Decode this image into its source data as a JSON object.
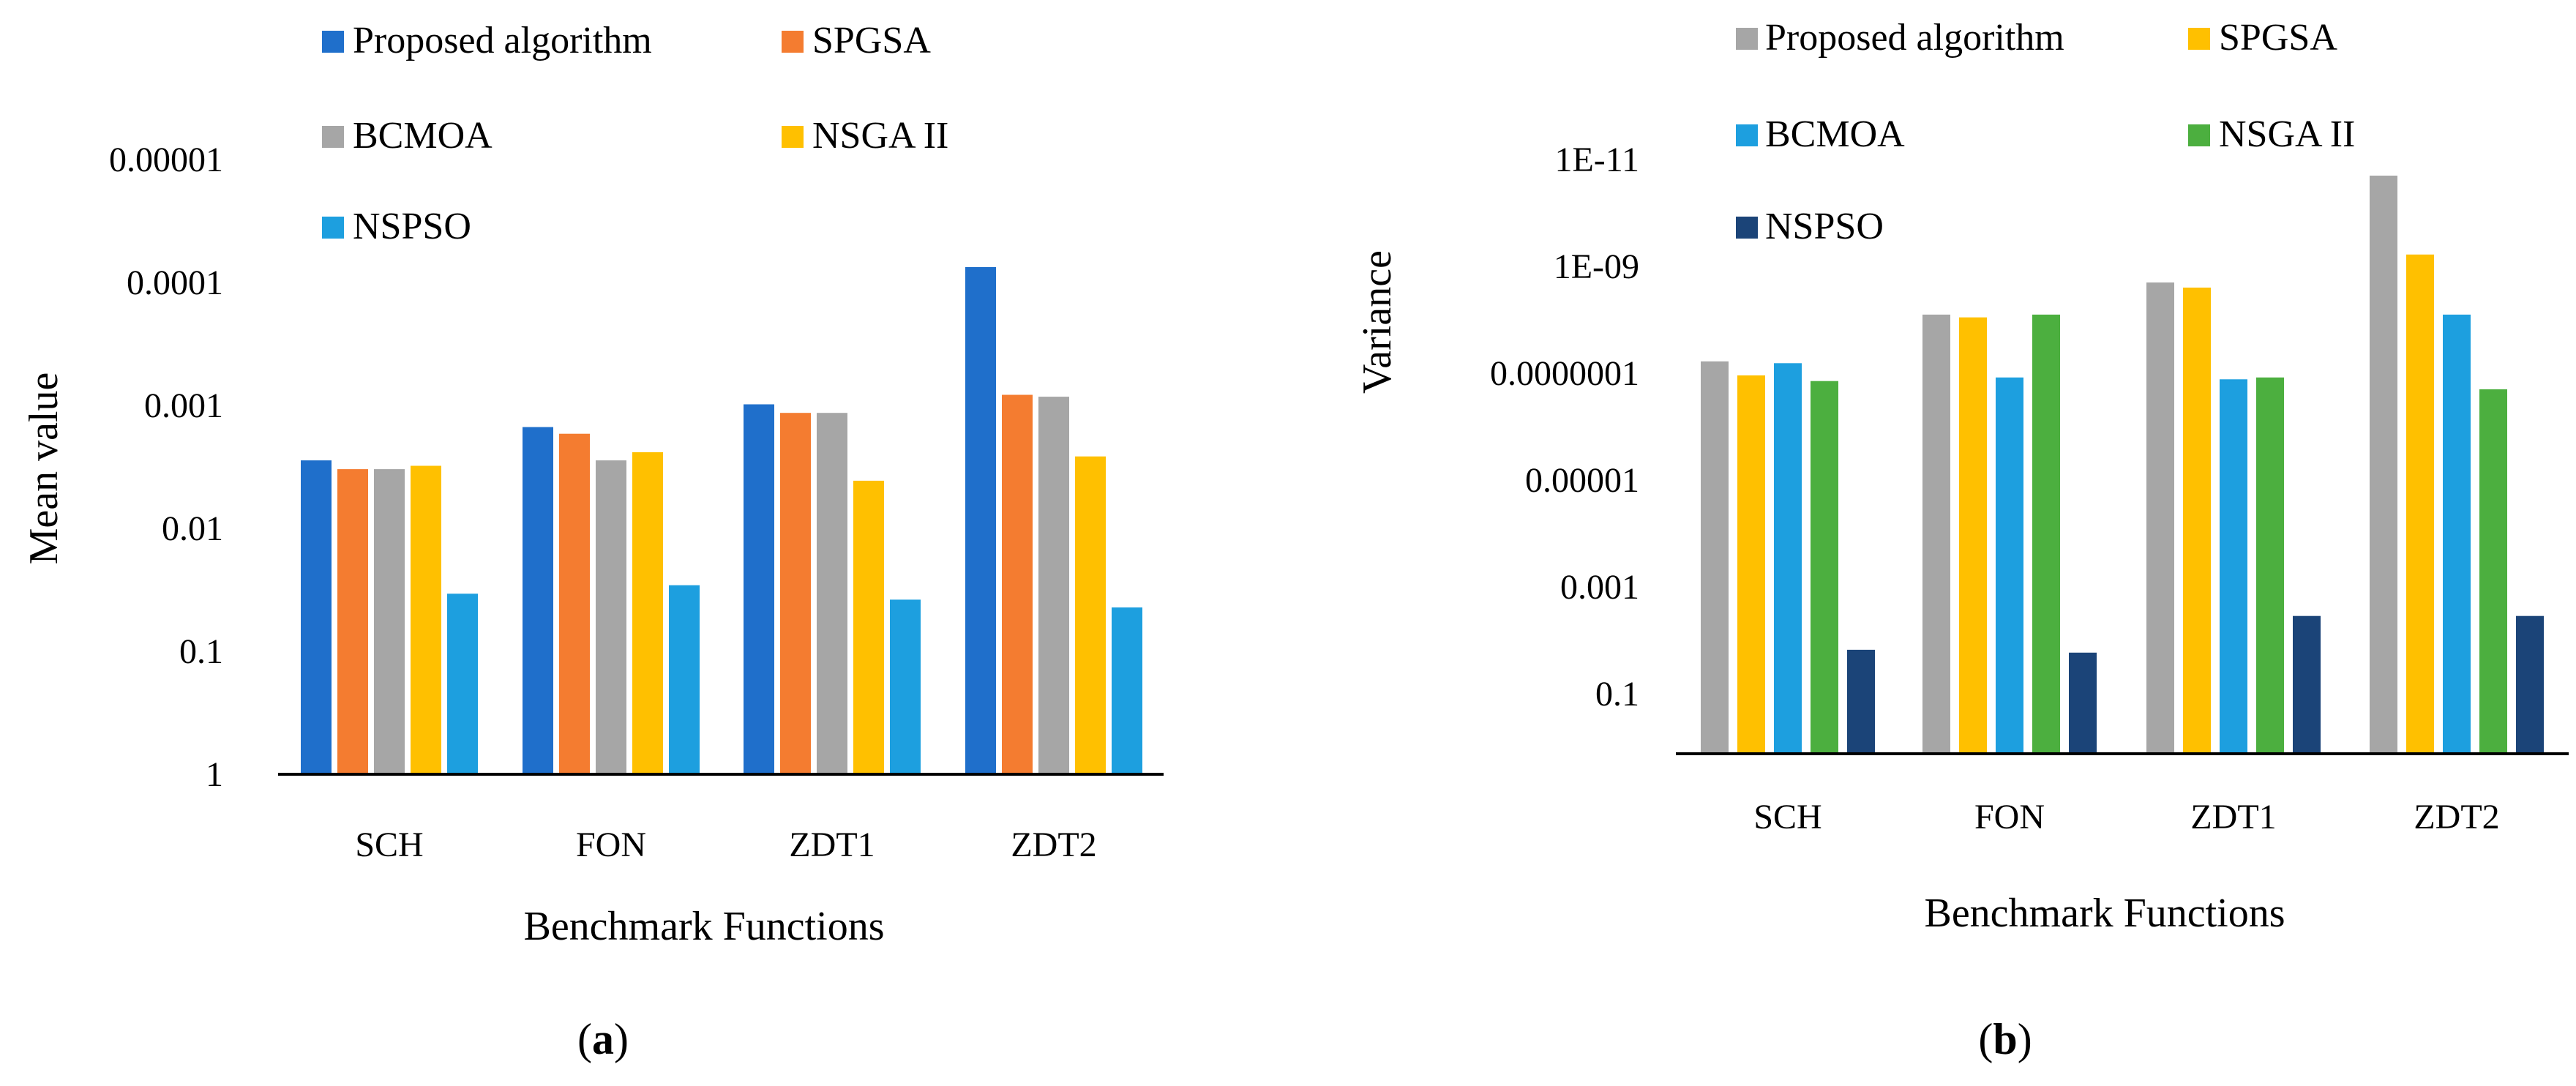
{
  "colors": {
    "blue": "#1f6fcb",
    "orange": "#f47c30",
    "gray": "#a6a6a6",
    "yellow": "#ffc000",
    "lightblue": "#1d9fdf",
    "green": "#4caf3f",
    "navy": "#1b4478"
  },
  "chart_data": [
    {
      "id": "a",
      "type": "bar",
      "scale": "log",
      "axis_inverted": true,
      "categories": [
        "SCH",
        "FON",
        "ZDT1",
        "ZDT2"
      ],
      "xlabel": "Benchmark Functions",
      "ylabel": "Mean value",
      "yticks": [
        "0.00001",
        "0.0001",
        "0.001",
        "0.01",
        "0.1",
        "1"
      ],
      "ylim": [
        1e-05,
        1
      ],
      "panel_label": "a",
      "series": [
        {
          "name": "Proposed algorithm",
          "color": "#1f6fcb",
          "values": [
            0.0028,
            0.0015,
            0.00098,
            7.5e-05
          ]
        },
        {
          "name": "SPGSA",
          "color": "#f47c30",
          "values": [
            0.0033,
            0.0017,
            0.00115,
            0.00082
          ]
        },
        {
          "name": "BCMOA",
          "color": "#a6a6a6",
          "values": [
            0.0033,
            0.0028,
            0.00115,
            0.00085
          ]
        },
        {
          "name": "NSGA II",
          "color": "#ffc000",
          "values": [
            0.0031,
            0.0024,
            0.0041,
            0.0026
          ]
        },
        {
          "name": "NSPSO",
          "color": "#1d9fdf",
          "values": [
            0.034,
            0.029,
            0.038,
            0.044
          ]
        }
      ]
    },
    {
      "id": "b",
      "type": "bar",
      "scale": "log",
      "axis_inverted": true,
      "categories": [
        "SCH",
        "FON",
        "ZDT1",
        "ZDT2"
      ],
      "xlabel": "Benchmark Functions",
      "ylabel": "Variance",
      "yticks": [
        "1E-11",
        "1E-09",
        "0.0000001",
        "0.00001",
        "0.001",
        "0.1"
      ],
      "ylim": [
        1e-11,
        1
      ],
      "panel_label": "b",
      "series": [
        {
          "name": "Proposed algorithm",
          "color": "#a6a6a6",
          "values": [
            6e-08,
            8e-09,
            2e-09,
            2e-11
          ]
        },
        {
          "name": "SPGSA",
          "color": "#ffc000",
          "values": [
            1.1e-07,
            9e-09,
            2.5e-09,
            6e-10
          ]
        },
        {
          "name": "BCMOA",
          "color": "#1d9fdf",
          "values": [
            6.5e-08,
            1.2e-07,
            1.3e-07,
            8e-09
          ]
        },
        {
          "name": "NSGA II",
          "color": "#4caf3f",
          "values": [
            1.4e-07,
            8e-09,
            1.2e-07,
            2e-07
          ]
        },
        {
          "name": "NSPSO",
          "color": "#1b4478",
          "values": [
            0.015,
            0.017,
            0.0035,
            0.0035
          ]
        }
      ]
    }
  ]
}
